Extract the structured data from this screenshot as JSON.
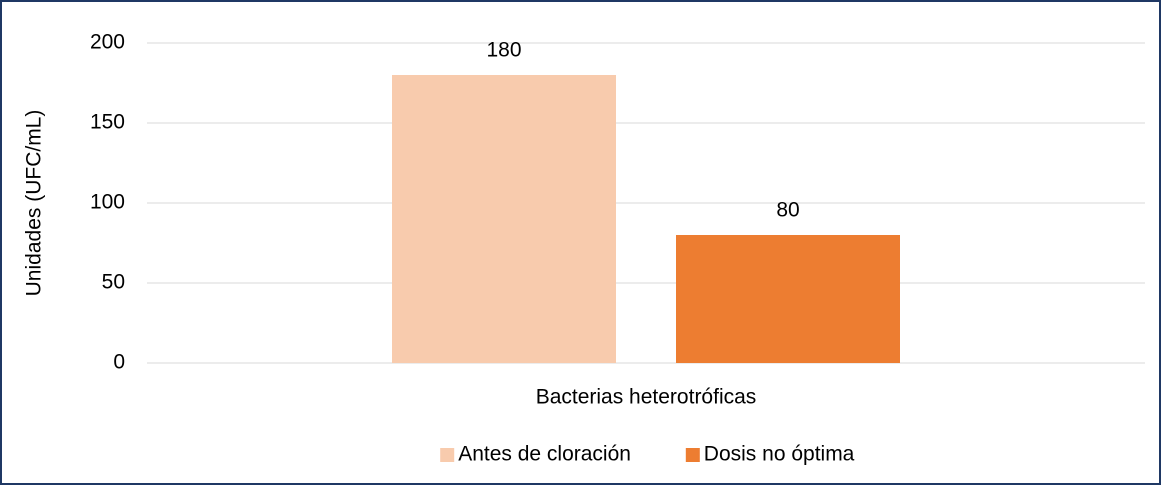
{
  "chart_data": {
    "type": "bar",
    "categories": [
      "Bacterias heterotróficas"
    ],
    "series": [
      {
        "name": "Antes de cloración",
        "color": "#f8cbad",
        "values": [
          180
        ]
      },
      {
        "name": "Dosis no óptima",
        "color": "#ed7d31",
        "values": [
          80
        ]
      }
    ],
    "y_label": "Unidades (UFC/mL)",
    "ylim": [
      0,
      200
    ],
    "yticks": [
      0,
      50,
      100,
      150,
      200
    ],
    "grid": true,
    "legend": "bottom"
  }
}
